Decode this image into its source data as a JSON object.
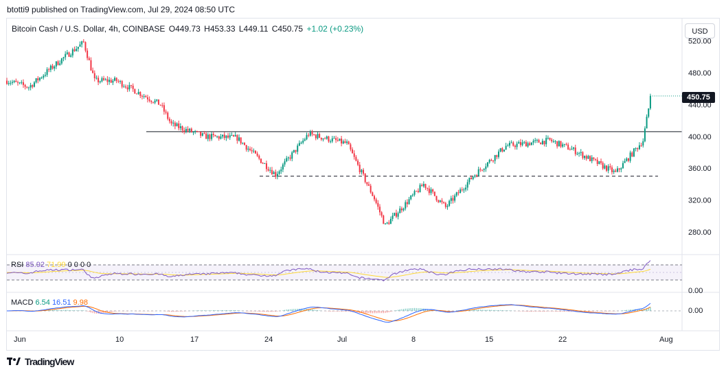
{
  "header": {
    "published": "btotti9 published on TradingView.com, Jul 29, 2024 08:50 UTC"
  },
  "legend": {
    "symbol": "Bitcoin Cash / U.S. Dollar, 4h, COINBASE",
    "open": "O449.73",
    "high": "H453.33",
    "low": "L449.11",
    "close": "C450.75",
    "change": "+1.02 (+0.23%)"
  },
  "currency_button": "USD",
  "last_price_tag": "450.75",
  "rsi": {
    "name": "RSI",
    "value": "85.92",
    "ma": "71.99",
    "extra": "0 0 0 0"
  },
  "macd": {
    "name": "MACD",
    "hist": "6.54",
    "macd": "16.51",
    "signal": "9.98"
  },
  "footer": {
    "brand": "TradingView"
  },
  "colors": {
    "up": "#089981",
    "down": "#f23645",
    "rsi_line": "#7e57c2",
    "rsi_ma": "#fdd835",
    "macd_line": "#2962ff",
    "signal_line": "#ff6d00"
  },
  "chart_data": {
    "type": "candlestick",
    "title": "Bitcoin Cash / U.S. Dollar, 4h, COINBASE",
    "price_axis_ticks": [
      "520.00",
      "480.00",
      "440.00",
      "400.00",
      "360.00",
      "320.00",
      "280.00"
    ],
    "ylim": [
      262,
      526
    ],
    "time_axis_ticks": [
      "Jun",
      "10",
      "17",
      "24",
      "Jul",
      "8",
      "15",
      "22",
      "Aug"
    ],
    "key_points": {
      "x_days": [
        0,
        2,
        5,
        7,
        8,
        10,
        14,
        15,
        18,
        21,
        24.5,
        27.5,
        31,
        33.5,
        34.5,
        38,
        40,
        42.5,
        45.5,
        49.5,
        51.5,
        55.5,
        58,
        58.7
      ],
      "price": [
        470,
        462,
        497,
        518,
        470,
        470,
        440,
        415,
        400,
        398,
        352,
        403,
        391,
        322,
        288,
        340,
        311,
        350,
        388,
        395,
        384,
        354,
        395,
        451
      ]
    },
    "resistance_level": 406,
    "support_level": 350,
    "last_price": 450.75,
    "rsi_ticks": [
      "0.00"
    ],
    "macd_ticks": [
      "0.00"
    ],
    "grid": false
  }
}
